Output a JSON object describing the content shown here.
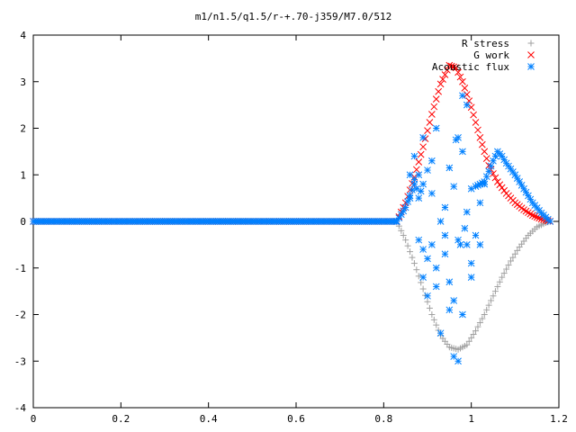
{
  "chart_data": {
    "type": "scatter",
    "title": "m1/n1.5/q1.5/r-+.70-j359/M7.0/512",
    "xlabel": "",
    "ylabel": "",
    "xlim": [
      0,
      1.2
    ],
    "ylim": [
      -4,
      4
    ],
    "x_ticks": [
      "0",
      "0.2",
      "0.4",
      "0.6",
      "0.8",
      "1",
      "1.2"
    ],
    "y_ticks": [
      "4",
      "3",
      "2",
      "1",
      "0",
      "-1",
      "-2",
      "-3",
      "-4"
    ],
    "grid": false,
    "legend_position": "top-right",
    "series": [
      {
        "name": "R stress",
        "marker": "plus",
        "color": "#a0a0a0",
        "curve": {
          "zero_until": 0.83,
          "points": [
            [
              0.83,
              0.0
            ],
            [
              0.85,
              -0.4
            ],
            [
              0.87,
              -0.9
            ],
            [
              0.89,
              -1.45
            ],
            [
              0.91,
              -2.0
            ],
            [
              0.93,
              -2.45
            ],
            [
              0.95,
              -2.7
            ],
            [
              0.97,
              -2.75
            ],
            [
              0.99,
              -2.65
            ],
            [
              1.01,
              -2.35
            ],
            [
              1.03,
              -2.0
            ],
            [
              1.05,
              -1.6
            ],
            [
              1.07,
              -1.2
            ],
            [
              1.09,
              -0.85
            ],
            [
              1.11,
              -0.55
            ],
            [
              1.13,
              -0.3
            ],
            [
              1.15,
              -0.12
            ],
            [
              1.17,
              -0.03
            ],
            [
              1.18,
              0.0
            ]
          ]
        }
      },
      {
        "name": "G work",
        "marker": "cross",
        "color": "#ff0000",
        "curve": {
          "zero_until": 0.83,
          "points": [
            [
              0.83,
              0.0
            ],
            [
              0.85,
              0.4
            ],
            [
              0.87,
              0.95
            ],
            [
              0.89,
              1.6
            ],
            [
              0.91,
              2.3
            ],
            [
              0.93,
              2.95
            ],
            [
              0.95,
              3.35
            ],
            [
              0.965,
              3.3
            ],
            [
              0.98,
              3.0
            ],
            [
              1.0,
              2.45
            ],
            [
              1.02,
              1.8
            ],
            [
              1.04,
              1.2
            ],
            [
              1.06,
              0.85
            ],
            [
              1.08,
              0.6
            ],
            [
              1.1,
              0.4
            ],
            [
              1.12,
              0.25
            ],
            [
              1.14,
              0.13
            ],
            [
              1.16,
              0.05
            ],
            [
              1.18,
              0.0
            ]
          ]
        }
      },
      {
        "name": "Acoustic flux",
        "marker": "star",
        "color": "#0080ff",
        "curve": {
          "zero_until": 0.83,
          "points": [
            [
              0.83,
              0.0
            ],
            [
              0.85,
              0.3
            ],
            [
              0.87,
              0.8
            ],
            [
              0.87,
              0.9
            ],
            [
              0.88,
              0.5
            ],
            [
              0.89,
              0.8
            ]
          ]
        },
        "tail": {
          "points": [
            [
              1.01,
              0.75
            ],
            [
              1.03,
              0.85
            ],
            [
              1.05,
              1.3
            ],
            [
              1.06,
              1.5
            ],
            [
              1.07,
              1.4
            ],
            [
              1.08,
              1.25
            ],
            [
              1.1,
              1.0
            ],
            [
              1.12,
              0.7
            ],
            [
              1.14,
              0.4
            ],
            [
              1.16,
              0.18
            ],
            [
              1.18,
              0.0
            ]
          ]
        },
        "scatter": [
          [
            0.86,
            0.5
          ],
          [
            0.86,
            1.0
          ],
          [
            0.87,
            1.4
          ],
          [
            0.88,
            1.0
          ],
          [
            0.88,
            -0.4
          ],
          [
            0.89,
            1.8
          ],
          [
            0.89,
            -0.6
          ],
          [
            0.89,
            -1.2
          ],
          [
            0.9,
            1.1
          ],
          [
            0.9,
            -0.8
          ],
          [
            0.9,
            -1.6
          ],
          [
            0.91,
            0.6
          ],
          [
            0.91,
            1.3
          ],
          [
            0.91,
            -0.5
          ],
          [
            0.92,
            2.0
          ],
          [
            0.92,
            -1.0
          ],
          [
            0.92,
            -1.4
          ],
          [
            0.93,
            0.0
          ],
          [
            0.93,
            -2.4
          ],
          [
            0.94,
            0.3
          ],
          [
            0.94,
            -0.3
          ],
          [
            0.94,
            -0.7
          ],
          [
            0.95,
            1.15
          ],
          [
            0.95,
            -1.3
          ],
          [
            0.95,
            -1.9
          ],
          [
            0.96,
            -1.7
          ],
          [
            0.96,
            0.75
          ],
          [
            0.97,
            1.8
          ],
          [
            0.97,
            -0.4
          ],
          [
            0.98,
            1.5
          ],
          [
            0.98,
            -2.0
          ],
          [
            0.99,
            -0.5
          ],
          [
            0.99,
            0.2
          ],
          [
            1.0,
            0.7
          ],
          [
            1.0,
            -0.9
          ],
          [
            1.0,
            -1.2
          ],
          [
            1.01,
            -0.3
          ],
          [
            1.02,
            0.4
          ],
          [
            1.02,
            -0.5
          ],
          [
            1.03,
            0.8
          ],
          [
            0.96,
            -2.9
          ],
          [
            0.97,
            -3.0
          ],
          [
            0.98,
            2.7
          ],
          [
            0.99,
            2.5
          ],
          [
            0.965,
            1.75
          ],
          [
            0.975,
            -0.5
          ],
          [
            0.985,
            -0.15
          ]
        ]
      }
    ]
  }
}
